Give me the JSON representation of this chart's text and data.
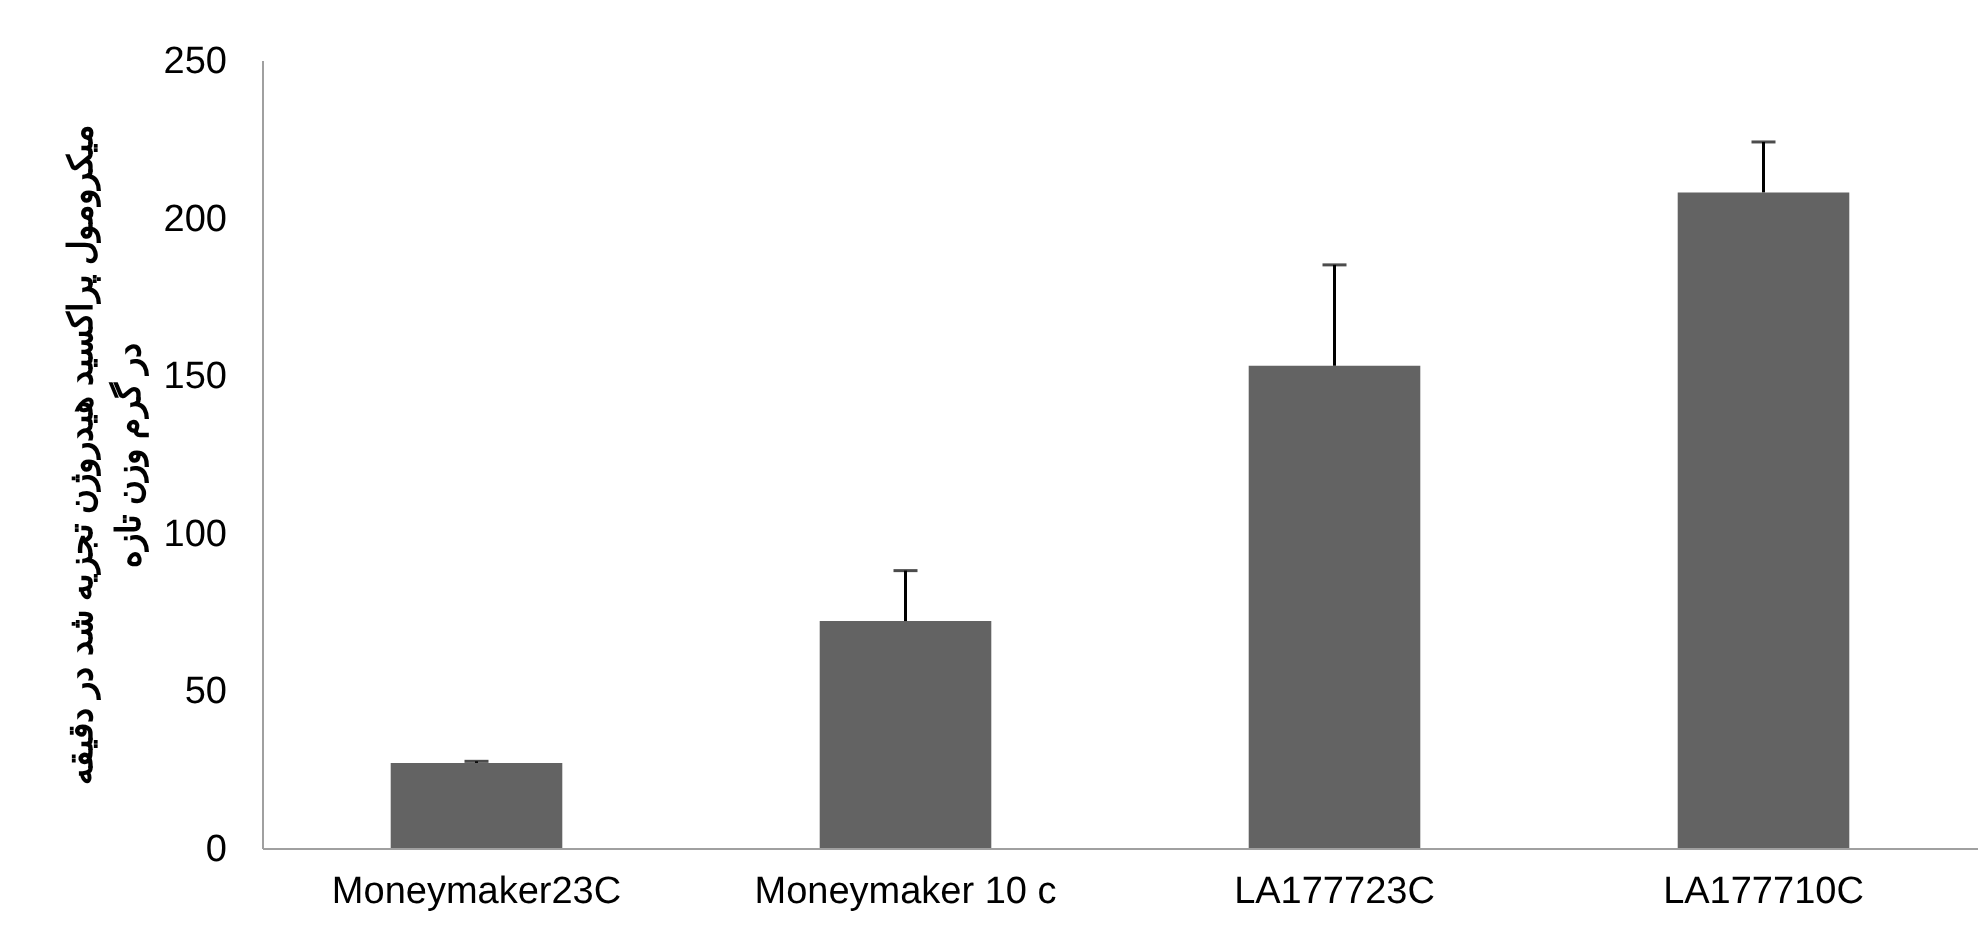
{
  "chart_data": {
    "type": "bar",
    "ylabel": "میکرومول پراکسید هیدروژن تجزیه شد در دقیقه\nدر گرم وزن تازه",
    "categories": [
      "Moneymaker23C",
      "Moneymaker 10 c",
      "LA177723C",
      "LA177710C"
    ],
    "values": [
      27,
      72,
      153,
      208
    ],
    "errors": [
      [
        27,
        27.5
      ],
      [
        72,
        88
      ],
      [
        153,
        185
      ],
      [
        208,
        224
      ]
    ],
    "color": "#636363",
    "ylim": [
      0,
      250
    ],
    "yticks": [
      0,
      50,
      100,
      150,
      200,
      250
    ],
    "grid": false
  }
}
